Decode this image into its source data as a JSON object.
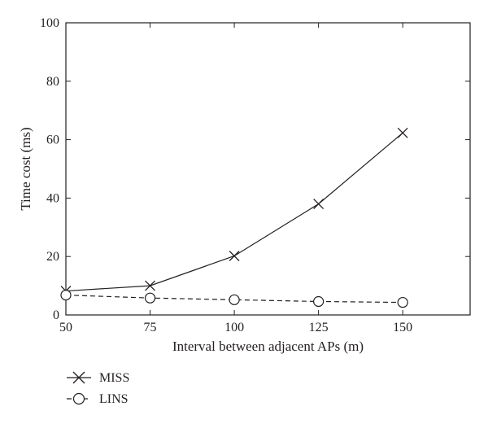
{
  "chart_data": {
    "type": "line",
    "xlabel": "Interval between adjacent APs (m)",
    "ylabel": "Time cost (ms)",
    "xlim": [
      50,
      170
    ],
    "ylim": [
      0,
      100
    ],
    "xticks": [
      "50",
      "75",
      "100",
      "125",
      "150"
    ],
    "yticks": [
      "0",
      "20",
      "40",
      "60",
      "80",
      "100"
    ],
    "x": [
      50,
      75,
      100,
      125,
      150
    ],
    "grid": false,
    "legend_position": "bottom-left, below plot",
    "series": [
      {
        "name": "MISS",
        "values": [
          8.2,
          10.0,
          20.2,
          38.0,
          62.3
        ],
        "line_style": "solid",
        "marker": "x",
        "color": "#231f20"
      },
      {
        "name": "LINS",
        "values": [
          6.8,
          5.8,
          5.2,
          4.6,
          4.3
        ],
        "line_style": "dashed",
        "marker": "circle",
        "color": "#231f20"
      }
    ]
  }
}
